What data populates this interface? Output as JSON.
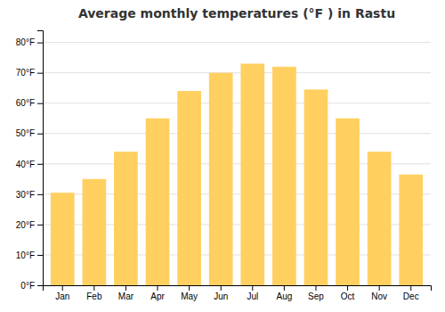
{
  "chart_data": {
    "type": "bar",
    "title": "Average monthly temperatures (°F ) in Rastu",
    "categories": [
      "Jan",
      "Feb",
      "Mar",
      "Apr",
      "May",
      "Jun",
      "Jul",
      "Aug",
      "Sep",
      "Oct",
      "Nov",
      "Dec"
    ],
    "values": [
      30.5,
      35.0,
      44.0,
      55.0,
      64.0,
      70.0,
      73.0,
      72.0,
      64.5,
      55.0,
      44.0,
      36.5
    ],
    "color": "#FFD060",
    "ylim": [
      0,
      84
    ],
    "yticks": [
      {
        "value": 0,
        "label": "0°F"
      },
      {
        "value": 10,
        "label": "10°F"
      },
      {
        "value": 20,
        "label": "20°F"
      },
      {
        "value": 30,
        "label": "30°F"
      },
      {
        "value": 40,
        "label": "40°F"
      },
      {
        "value": 50,
        "label": "50°F"
      },
      {
        "value": 60,
        "label": "60°F"
      },
      {
        "value": 70,
        "label": "70°F"
      },
      {
        "value": 80,
        "label": "80°F"
      }
    ],
    "grid": true
  }
}
